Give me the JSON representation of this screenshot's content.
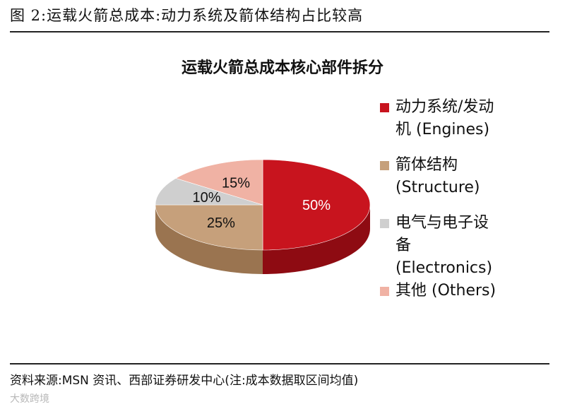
{
  "figure_title": "图 2:运载火箭总成本:动力系统及箭体结构占比较高",
  "source": "资料来源:MSN 资讯、西部证券研发中心(注:成本数据取区间均值)",
  "watermark": "大数跨境",
  "colors": {
    "engines": "#c8141e",
    "engines_side": "#8e0b12",
    "structure": "#c6a07b",
    "structure_side": "#9a7450",
    "electronics": "#cfcfcf",
    "electronics_side": "#a3a3a3",
    "others": "#f0b2a4",
    "others_side": "#c48678"
  },
  "chart_data": {
    "type": "pie",
    "title": "运载火箭总成本核心部件拆分",
    "labels": [
      "动力系统/发动机 (Engines)",
      "箭体结构 (Structure)",
      "电气与电子设备 (Electronics)",
      "其他 (Others)"
    ],
    "values": [
      50,
      25,
      10,
      15
    ],
    "data_labels": [
      "50%",
      "25%",
      "10%",
      "15%"
    ],
    "legend_position": "right"
  },
  "legend": [
    {
      "line1": "动力系统/发动",
      "line2": "机 (Engines)",
      "color_key": "engines"
    },
    {
      "line1": "箭体结构",
      "line2": "(Structure)",
      "color_key": "structure"
    },
    {
      "line1": "电气与电子设",
      "line2": "备",
      "line3": "(Electronics)",
      "color_key": "electronics"
    },
    {
      "line1": "其他 (Others)",
      "color_key": "others"
    }
  ]
}
